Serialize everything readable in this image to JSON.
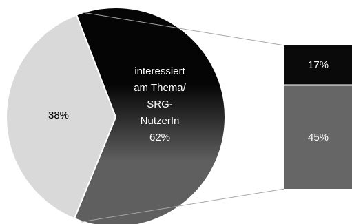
{
  "chart_data": {
    "type": "bar-of-pie",
    "pie": {
      "slices": [
        {
          "label_lines": [
            "interessiert",
            "am Thema/",
            "SRG-",
            "NutzerIn",
            "62%"
          ],
          "value": 62,
          "color": "dark-gradient"
        },
        {
          "label_lines": [
            "38%"
          ],
          "value": 38,
          "color": "#d9d9d9"
        }
      ]
    },
    "bar": {
      "segments": [
        {
          "label": "17%",
          "value": 17,
          "color": "#0a0a0a"
        },
        {
          "label": "45%",
          "value": 45,
          "color": "#666666"
        }
      ]
    },
    "colors": {
      "gradient_top": "#050505",
      "gradient_bottom": "#5f5f5f",
      "light_slice": "#d9d9d9",
      "bar_dark": "#0a0a0a",
      "bar_gray": "#666666",
      "connector": "#a6a6a6",
      "label_dark_bg": "#ffffff",
      "label_light_bg": "#000000"
    }
  }
}
